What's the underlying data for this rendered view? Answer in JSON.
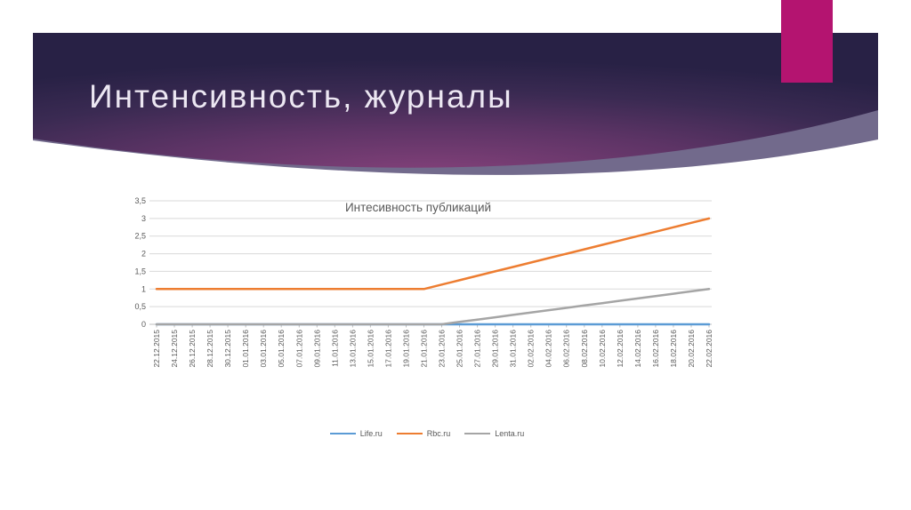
{
  "slide": {
    "title": "Интенсивность, журналы"
  },
  "colors": {
    "accent_rect": "#b41470",
    "slide_title_text": "#ece7f2",
    "band_gradient": [
      "#83417a",
      "#5e3466",
      "#3a2a52",
      "#282145"
    ],
    "band_light_wedge": "#726a8c",
    "chart_text": "#595959",
    "gridline": "#d9d9d9",
    "axis_line": "#bfbfbf",
    "background": "#ffffff"
  },
  "chart_data": {
    "type": "line",
    "title": "Интесивность публикаций",
    "xlabel": "",
    "ylabel": "",
    "ylim": [
      0,
      3.5
    ],
    "ytick_step": 0.5,
    "ytick_labels": [
      "0",
      "0,5",
      "1",
      "1,5",
      "2",
      "2,5",
      "3",
      "3,5"
    ],
    "grid": true,
    "legend_position": "bottom",
    "categories": [
      "22.12.2015",
      "24.12.2015",
      "26.12.2015",
      "28.12.2015",
      "30.12.2015",
      "01.01.2016",
      "03.01.2016",
      "05.01.2016",
      "07.01.2016",
      "09.01.2016",
      "11.01.2016",
      "13.01.2016",
      "15.01.2016",
      "17.01.2016",
      "19.01.2016",
      "21.01.2016",
      "23.01.2016",
      "25.01.2016",
      "27.01.2016",
      "29.01.2016",
      "31.01.2016",
      "02.02.2016",
      "04.02.2016",
      "06.02.2016",
      "08.02.2016",
      "10.02.2016",
      "12.02.2016",
      "14.02.2016",
      "16.02.2016",
      "18.02.2016",
      "20.02.2016",
      "22.02.2016"
    ],
    "series": [
      {
        "name": "Life.ru",
        "color": "#5b9bd5",
        "values": [
          0,
          0,
          0,
          0,
          0,
          0,
          0,
          0,
          0,
          0,
          0,
          0,
          0,
          0,
          0,
          0,
          0,
          0,
          0,
          0,
          0,
          0,
          0,
          0,
          0,
          0,
          0,
          0,
          0,
          0,
          0,
          0
        ]
      },
      {
        "name": "Rbc.ru",
        "color": "#ed7d31",
        "values": [
          1,
          1,
          1,
          1,
          1,
          1,
          1,
          1,
          1,
          1,
          1,
          1,
          1,
          1,
          1,
          1,
          1.125,
          1.25,
          1.375,
          1.5,
          1.625,
          1.75,
          1.875,
          2,
          2.125,
          2.25,
          2.375,
          2.5,
          2.625,
          2.75,
          2.875,
          3
        ]
      },
      {
        "name": "Lenta.ru",
        "color": "#a5a5a5",
        "values": [
          0,
          0,
          0,
          0,
          0,
          0,
          0,
          0,
          0,
          0,
          0,
          0,
          0,
          0,
          0,
          0,
          0,
          0.067,
          0.133,
          0.2,
          0.267,
          0.333,
          0.4,
          0.467,
          0.533,
          0.6,
          0.667,
          0.733,
          0.8,
          0.867,
          0.933,
          1
        ]
      }
    ]
  }
}
